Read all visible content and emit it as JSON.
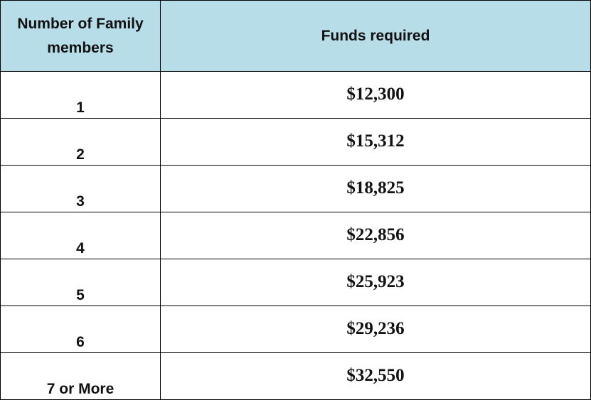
{
  "table": {
    "header": [
      "Number of Family members",
      "Funds required"
    ],
    "rows": [
      [
        "1",
        "$12,300"
      ],
      [
        "2",
        "$15,312"
      ],
      [
        "3",
        "$18,825"
      ],
      [
        "4",
        "$22,856"
      ],
      [
        "5",
        "$25,923"
      ],
      [
        "6",
        "$29,236"
      ],
      [
        "7 or More",
        "$32,550"
      ]
    ]
  }
}
